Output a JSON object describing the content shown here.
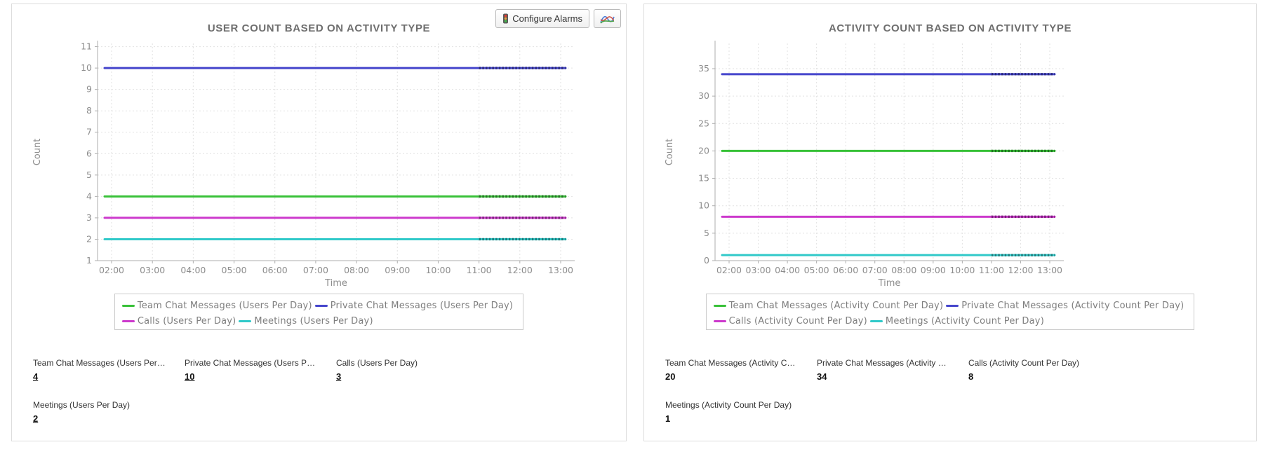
{
  "toolbar": {
    "configure_alarms_label": "Configure Alarms"
  },
  "panels": [
    {
      "name": "user-count-widget",
      "values_underlined": true,
      "stats": [
        {
          "label": "Team Chat Messages (Users Per Day)",
          "value": "4"
        },
        {
          "label": "Private Chat Messages (Users Per Day)",
          "value": "10"
        },
        {
          "label": "Calls (Users Per Day)",
          "value": "3"
        },
        {
          "label": "Meetings (Users Per Day)",
          "value": "2"
        }
      ]
    },
    {
      "name": "activity-count-widget",
      "values_underlined": false,
      "stats": [
        {
          "label": "Team Chat Messages (Activity Count Per Day)",
          "value": "20"
        },
        {
          "label": "Private Chat Messages (Activity Count Per Day)",
          "value": "34"
        },
        {
          "label": "Calls (Activity Count Per Day)",
          "value": "8"
        },
        {
          "label": "Meetings (Activity Count Per Day)",
          "value": "1"
        }
      ]
    }
  ],
  "chart_data": [
    {
      "type": "line",
      "title": "USER COUNT BASED ON ACTIVITY TYPE",
      "xlabel": "Time",
      "ylabel": "Count",
      "x_tick_labels": [
        "02:00",
        "03:00",
        "04:00",
        "05:00",
        "06:00",
        "07:00",
        "08:00",
        "09:00",
        "10:00",
        "11:00",
        "12:00",
        "13:00"
      ],
      "y_ticks": [
        1,
        2,
        3,
        4,
        5,
        6,
        7,
        8,
        9,
        10,
        11
      ],
      "ylim": [
        1,
        11.15
      ],
      "grid": true,
      "legend_position": "bottom",
      "series": [
        {
          "name": "Team Chat Messages (Users Per Day)",
          "color": "#38c138",
          "constant_value": 4
        },
        {
          "name": "Private Chat Messages (Users Per Day)",
          "color": "#4545cc",
          "constant_value": 10
        },
        {
          "name": "Calls (Users Per Day)",
          "color": "#cc39cc",
          "constant_value": 3
        },
        {
          "name": "Meetings (Users Per Day)",
          "color": "#30c9c9",
          "constant_value": 2
        }
      ]
    },
    {
      "type": "line",
      "title": "ACTIVITY COUNT BASED ON ACTIVITY TYPE",
      "xlabel": "Time",
      "ylabel": "Count",
      "x_tick_labels": [
        "02:00",
        "03:00",
        "04:00",
        "05:00",
        "06:00",
        "07:00",
        "08:00",
        "09:00",
        "10:00",
        "11:00",
        "12:00",
        "13:00"
      ],
      "y_ticks": [
        0,
        5,
        10,
        15,
        20,
        25,
        30,
        35
      ],
      "ylim": [
        0,
        39.6
      ],
      "grid": true,
      "legend_position": "bottom",
      "series": [
        {
          "name": "Team Chat Messages (Activity Count Per Day)",
          "color": "#38c138",
          "constant_value": 20
        },
        {
          "name": "Private Chat Messages (Activity Count Per Day)",
          "color": "#4545cc",
          "constant_value": 34
        },
        {
          "name": "Calls (Activity Count Per Day)",
          "color": "#cc39cc",
          "constant_value": 8
        },
        {
          "name": "Meetings (Activity Count Per Day)",
          "color": "#30c9c9",
          "constant_value": 1
        }
      ]
    }
  ]
}
